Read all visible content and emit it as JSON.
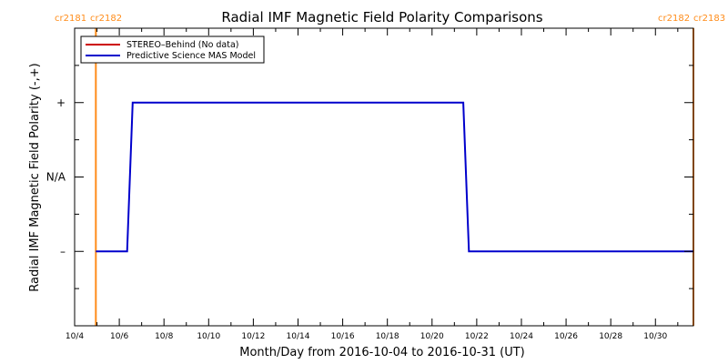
{
  "chart_data": {
    "type": "line",
    "title": "Radial IMF Magnetic Field Polarity Comparisons",
    "xlabel": "Month/Day from 2016-10-04 to 2016-10-31 (UT)",
    "ylabel": "Radial IMF Magnetic Field Polarity (-,+)",
    "x_range_days": [
      0,
      27.7
    ],
    "ylim": [
      -2,
      2
    ],
    "x_ticks": [
      {
        "day": 0,
        "label": "10/4"
      },
      {
        "day": 2,
        "label": "10/6"
      },
      {
        "day": 4,
        "label": "10/8"
      },
      {
        "day": 6,
        "label": "10/10"
      },
      {
        "day": 8,
        "label": "10/12"
      },
      {
        "day": 10,
        "label": "10/14"
      },
      {
        "day": 12,
        "label": "10/16"
      },
      {
        "day": 14,
        "label": "10/18"
      },
      {
        "day": 16,
        "label": "10/20"
      },
      {
        "day": 18,
        "label": "10/22"
      },
      {
        "day": 20,
        "label": "10/24"
      },
      {
        "day": 22,
        "label": "10/26"
      },
      {
        "day": 24,
        "label": "10/28"
      },
      {
        "day": 26,
        "label": "10/30"
      }
    ],
    "y_ticks": [
      {
        "value": 1,
        "label": "+"
      },
      {
        "value": 0,
        "label": "N/A"
      },
      {
        "value": -1,
        "label": "–"
      }
    ],
    "series": [
      {
        "name": "STEREO–Behind (No data)",
        "color": "#cc0000",
        "x": [],
        "y": []
      },
      {
        "name": "Predictive Science MAS Model",
        "color": "#0000cc",
        "x": [
          0.95,
          2.35,
          2.6,
          17.4,
          17.65,
          27.7
        ],
        "y": [
          -1,
          -1,
          1,
          1,
          -1,
          -1
        ]
      }
    ],
    "carrington_markers": [
      {
        "day": 0.95,
        "label_left": "cr2181",
        "label_right": "cr2182",
        "color": "#ff8c1a"
      },
      {
        "day": 27.7,
        "label_left": "cr2182",
        "label_right": "cr2183",
        "color": "#ff8c1a"
      }
    ],
    "legend_position": "top-left",
    "grid": false
  }
}
